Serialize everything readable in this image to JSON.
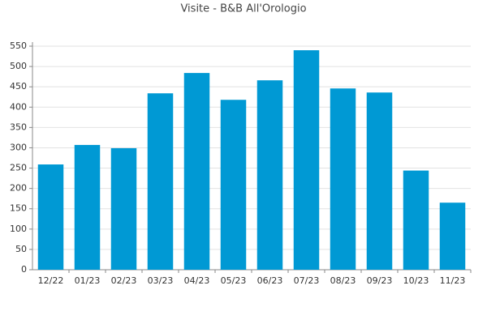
{
  "chart_data": {
    "type": "bar",
    "title": "Visite - B&B All'Orologio",
    "categories": [
      "12/22",
      "01/23",
      "02/23",
      "03/23",
      "04/23",
      "05/23",
      "06/23",
      "07/23",
      "08/23",
      "09/23",
      "10/23",
      "11/23"
    ],
    "values": [
      259,
      307,
      299,
      434,
      484,
      418,
      466,
      540,
      446,
      436,
      244,
      165
    ],
    "color": "#0099d4",
    "ylim": [
      0,
      550
    ],
    "yticks": [
      0,
      50,
      100,
      150,
      200,
      250,
      300,
      350,
      400,
      450,
      500,
      550
    ],
    "grid": true
  }
}
